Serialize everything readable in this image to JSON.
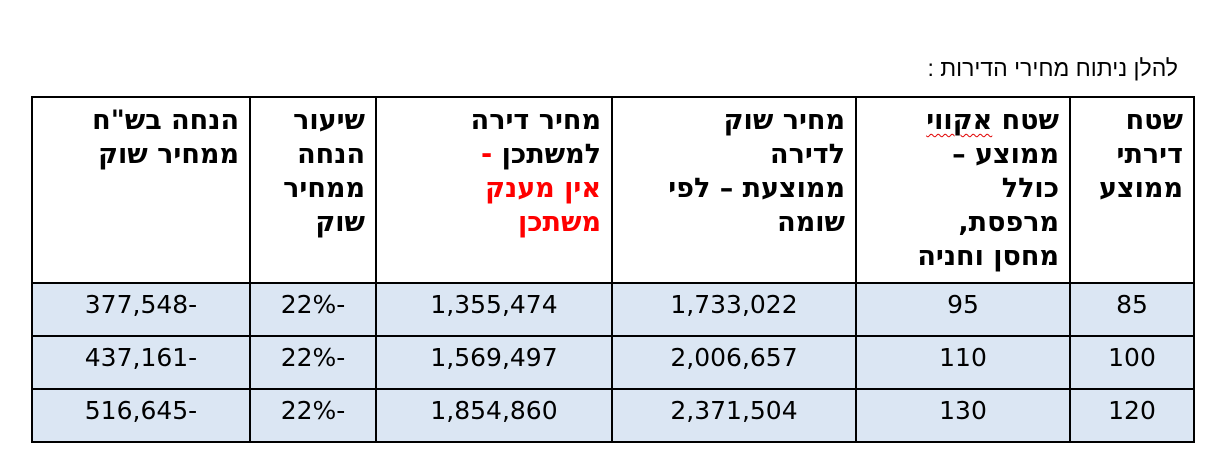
{
  "intro_text": "להלן ניתוח מחירי הדירות :",
  "table": {
    "headers": {
      "rooms_area": [
        "שטח",
        "דירתי",
        "ממוצע"
      ],
      "acoustic_area_part1": "שטח ",
      "acoustic_area_word": "אקווי",
      "acoustic_area_rest": [
        "ממוצע –",
        "כולל",
        "מרפסת,",
        "מחסן וחניה"
      ],
      "market_price": [
        "מחיר שוק",
        "לדירה",
        "ממוצעת – לפי",
        "שומה"
      ],
      "buyer_price_lines": [
        "מחיר דירה",
        "למשתכן"
      ],
      "buyer_price_dash": " -",
      "buyer_price_red": [
        "אין מענק",
        "משתכן"
      ],
      "discount_rate": [
        "שיעור",
        "הנחה",
        "ממחיר",
        "שוק"
      ],
      "discount_nis": [
        "הנחה בש\"ח",
        "ממחיר שוק"
      ]
    },
    "rows": [
      {
        "rooms_area": "85",
        "avg_area": "95",
        "market_price": "1,733,022",
        "buyer_price": "1,355,474",
        "discount_rate": "-22%",
        "discount_nis": "-377,548"
      },
      {
        "rooms_area": "100",
        "avg_area": "110",
        "market_price": "2,006,657",
        "buyer_price": "1,569,497",
        "discount_rate": "-22%",
        "discount_nis": "-437,161"
      },
      {
        "rooms_area": "120",
        "avg_area": "130",
        "market_price": "2,371,504",
        "buyer_price": "1,854,860",
        "discount_rate": "-22%",
        "discount_nis": "-516,645"
      }
    ]
  },
  "colors": {
    "data_cell_bg": "#dbe6f3",
    "highlight_red": "#ff0000",
    "border": "#000000"
  }
}
